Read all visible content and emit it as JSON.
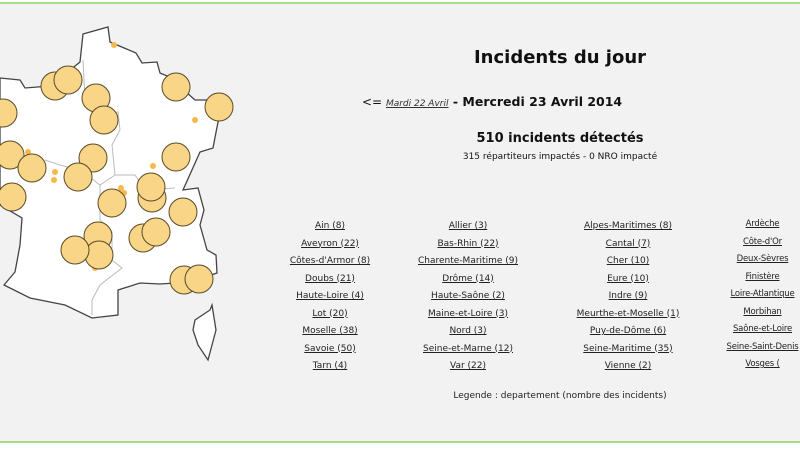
{
  "header": {
    "title": "Incidents du jour",
    "prev_day_prefix": "<=",
    "prev_day_link": "Mardi 22 Avril",
    "separator": " - ",
    "current_date": "Mercredi 23 Avril 2014"
  },
  "summary": {
    "incidents": "510 incidents détectés",
    "details": "315 répartiteurs impactés - 0 NRO impacté"
  },
  "departments": [
    "Ain (8)",
    "Allier (3)",
    "Alpes-Maritimes (8)",
    "Ardèche",
    "Aveyron (22)",
    "Bas-Rhin (22)",
    "Cantal (7)",
    "Côte-d'Or",
    "Côtes-d'Armor (8)",
    "Charente-Maritime (9)",
    "Cher (10)",
    "Deux-Sèvres",
    "Doubs (21)",
    "Drôme (14)",
    "Eure (10)",
    "Finistère",
    "Haute-Loire (4)",
    "Haute-Saône (2)",
    "Indre (9)",
    "Loire-Atlantique",
    "Lot (20)",
    "Maine-et-Loire (3)",
    "Meurthe-et-Moselle (1)",
    "Morbihan",
    "Moselle (38)",
    "Nord (3)",
    "Puy-de-Dôme (6)",
    "Saône-et-Loire",
    "Savoie (50)",
    "Seine-et-Marne (12)",
    "Seine-Maritime (35)",
    "Seine-Saint-Denis",
    "Tarn (4)",
    "Var (22)",
    "Vienne (2)",
    "Vosges ("
  ],
  "legend": "Legende : departement (nombre des incidents)",
  "colors": {
    "marker": "#f9d587",
    "small_marker": "#f7b94a",
    "border": "#a6dc8c"
  }
}
